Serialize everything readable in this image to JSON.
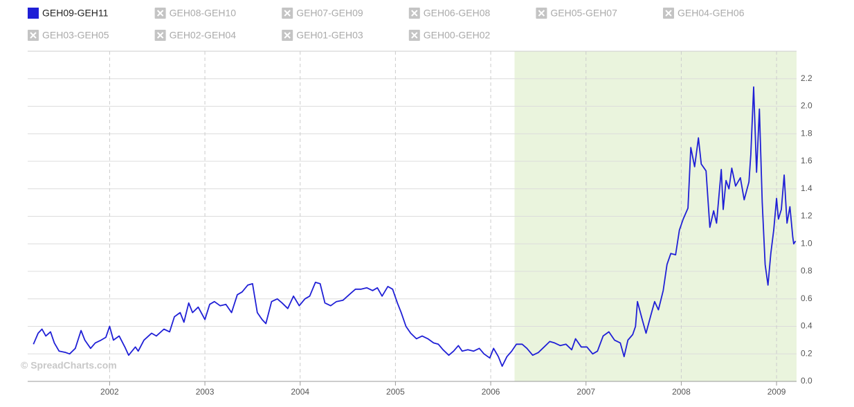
{
  "chart_data": {
    "type": "line",
    "watermark": "© SpreadCharts.com",
    "xlim": [
      2001.14,
      2009.21
    ],
    "xticks": [
      2002,
      2003,
      2004,
      2005,
      2006,
      2007,
      2008,
      2009
    ],
    "ylim": [
      0,
      2.4
    ],
    "yticks": [
      {
        "value": 0,
        "label": "0.0"
      },
      0.2,
      0.4,
      0.6,
      0.8,
      {
        "value": 1,
        "label": "1.0"
      },
      1.2,
      1.4,
      1.6,
      1.8,
      {
        "value": 2,
        "label": "2.0"
      },
      2.2
    ],
    "grid": true,
    "shaded_range": [
      2006.25,
      2009.21
    ],
    "shade_color": "#eaf4dd",
    "x": [
      2001.2,
      2001.25,
      2001.29,
      2001.33,
      2001.38,
      2001.42,
      2001.47,
      2001.54,
      2001.58,
      2001.64,
      2001.7,
      2001.74,
      2001.8,
      2001.85,
      2001.91,
      2001.96,
      2002.0,
      2002.04,
      2002.1,
      2002.16,
      2002.2,
      2002.27,
      2002.3,
      2002.36,
      2002.44,
      2002.49,
      2002.57,
      2002.63,
      2002.68,
      2002.74,
      2002.78,
      2002.83,
      2002.87,
      2002.93,
      2003.0,
      2003.05,
      2003.1,
      2003.16,
      2003.22,
      2003.28,
      2003.34,
      2003.39,
      2003.45,
      2003.5,
      2003.55,
      2003.6,
      2003.64,
      2003.7,
      2003.76,
      2003.81,
      2003.87,
      2003.93,
      2003.99,
      2004.05,
      2004.1,
      2004.16,
      2004.21,
      2004.26,
      2004.32,
      2004.38,
      2004.45,
      2004.53,
      2004.58,
      2004.64,
      2004.7,
      2004.76,
      2004.81,
      2004.86,
      2004.92,
      2004.97,
      2005.02,
      2005.06,
      2005.11,
      2005.16,
      2005.22,
      2005.28,
      2005.34,
      2005.4,
      2005.45,
      2005.5,
      2005.56,
      2005.61,
      2005.66,
      2005.7,
      2005.76,
      2005.82,
      2005.88,
      2005.93,
      2005.99,
      2006.03,
      2006.08,
      2006.12,
      2006.17,
      2006.22,
      2006.27,
      2006.33,
      2006.38,
      2006.44,
      2006.5,
      2006.56,
      2006.62,
      2006.67,
      2006.73,
      2006.79,
      2006.85,
      2006.89,
      2006.95,
      2007.01,
      2007.07,
      2007.12,
      2007.18,
      2007.24,
      2007.3,
      2007.36,
      2007.4,
      2007.44,
      2007.49,
      2007.52,
      2007.54,
      2007.59,
      2007.63,
      2007.68,
      2007.72,
      2007.76,
      2007.81,
      2007.85,
      2007.89,
      2007.94,
      2007.98,
      2008.02,
      2008.07,
      2008.1,
      2008.14,
      2008.18,
      2008.21,
      2008.26,
      2008.3,
      2008.34,
      2008.37,
      2008.42,
      2008.44,
      2008.47,
      2008.5,
      2008.53,
      2008.57,
      2008.62,
      2008.66,
      2008.71,
      2008.73,
      2008.76,
      2008.79,
      2008.82,
      2008.85,
      2008.88,
      2008.91,
      2008.94,
      2008.97,
      2009.0,
      2009.02,
      2009.05,
      2009.08,
      2009.11,
      2009.14,
      2009.17,
      2009.18,
      2009.2
    ],
    "series": [
      {
        "name": "GEH09-GEH11",
        "color": "#1f1fd6",
        "visible": true,
        "values": [
          0.27,
          0.35,
          0.38,
          0.33,
          0.36,
          0.28,
          0.22,
          0.21,
          0.2,
          0.24,
          0.37,
          0.3,
          0.24,
          0.28,
          0.3,
          0.32,
          0.4,
          0.3,
          0.33,
          0.25,
          0.19,
          0.25,
          0.22,
          0.3,
          0.35,
          0.33,
          0.38,
          0.36,
          0.47,
          0.5,
          0.43,
          0.57,
          0.5,
          0.54,
          0.45,
          0.56,
          0.58,
          0.55,
          0.56,
          0.5,
          0.63,
          0.65,
          0.7,
          0.71,
          0.5,
          0.45,
          0.42,
          0.58,
          0.6,
          0.57,
          0.53,
          0.62,
          0.55,
          0.6,
          0.62,
          0.72,
          0.71,
          0.57,
          0.55,
          0.58,
          0.59,
          0.64,
          0.67,
          0.67,
          0.68,
          0.66,
          0.68,
          0.62,
          0.69,
          0.67,
          0.57,
          0.5,
          0.4,
          0.35,
          0.31,
          0.33,
          0.31,
          0.28,
          0.27,
          0.23,
          0.19,
          0.22,
          0.26,
          0.22,
          0.23,
          0.22,
          0.24,
          0.2,
          0.17,
          0.24,
          0.18,
          0.11,
          0.18,
          0.22,
          0.27,
          0.27,
          0.24,
          0.19,
          0.21,
          0.25,
          0.29,
          0.28,
          0.26,
          0.27,
          0.23,
          0.31,
          0.25,
          0.25,
          0.2,
          0.22,
          0.33,
          0.36,
          0.3,
          0.28,
          0.18,
          0.3,
          0.34,
          0.4,
          0.58,
          0.45,
          0.35,
          0.48,
          0.58,
          0.52,
          0.66,
          0.85,
          0.93,
          0.92,
          1.1,
          1.18,
          1.26,
          1.7,
          1.56,
          1.77,
          1.58,
          1.53,
          1.12,
          1.24,
          1.15,
          1.54,
          1.25,
          1.46,
          1.4,
          1.55,
          1.42,
          1.48,
          1.32,
          1.45,
          1.65,
          2.14,
          1.52,
          1.98,
          1.3,
          0.85,
          0.7,
          0.93,
          1.1,
          1.33,
          1.18,
          1.25,
          1.5,
          1.15,
          1.27,
          1.05,
          1.0,
          1.02
        ]
      },
      {
        "name": "GEH08-GEH10",
        "visible": false
      },
      {
        "name": "GEH07-GEH09",
        "visible": false
      },
      {
        "name": "GEH06-GEH08",
        "visible": false
      },
      {
        "name": "GEH05-GEH07",
        "visible": false
      },
      {
        "name": "GEH04-GEH06",
        "visible": false
      },
      {
        "name": "GEH03-GEH05",
        "visible": false
      },
      {
        "name": "GEH02-GEH04",
        "visible": false
      },
      {
        "name": "GEH01-GEH03",
        "visible": false
      },
      {
        "name": "GEH00-GEH02",
        "visible": false
      }
    ]
  }
}
